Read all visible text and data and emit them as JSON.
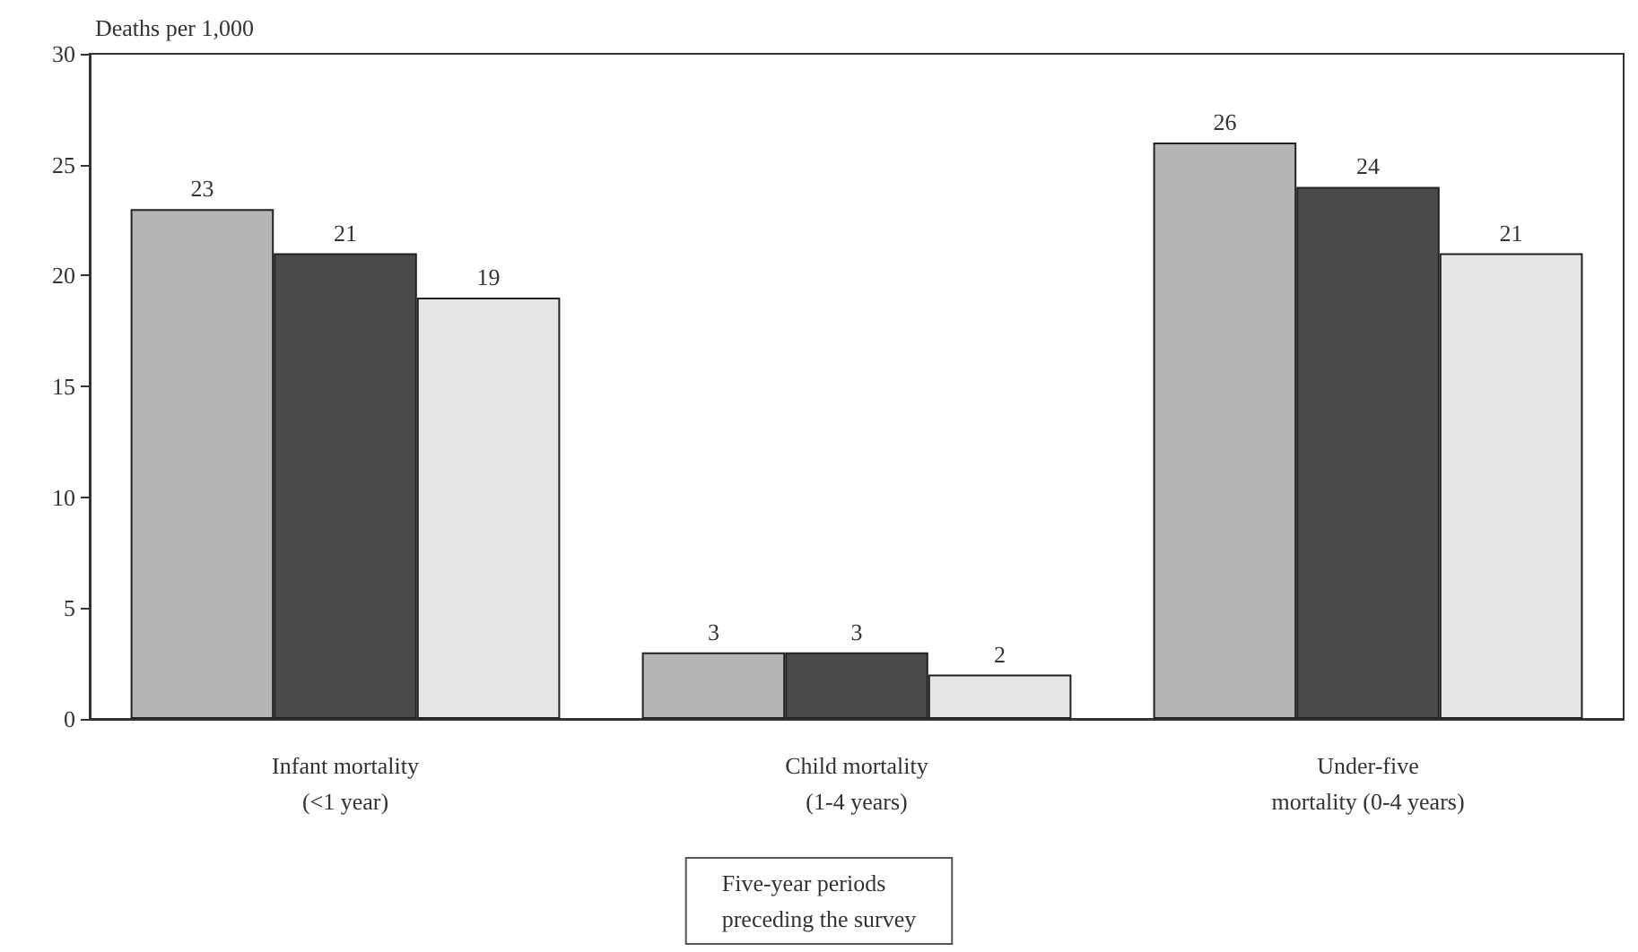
{
  "chart_data": {
    "type": "bar",
    "ylabel": "Deaths per 1,000",
    "legend_title": "Five-year periods\npreceding the survey",
    "categories": [
      "Infant mortality\n(<1 year)",
      "Child mortality\n(1-4 years)",
      "Under-five\nmortality (0-4 years)"
    ],
    "series": [
      {
        "color": "#b4b4b4",
        "values": [
          23,
          3,
          26
        ]
      },
      {
        "color": "#4a4a4a",
        "values": [
          21,
          3,
          24
        ]
      },
      {
        "color": "#e6e6e6",
        "values": [
          19,
          2,
          21
        ]
      }
    ],
    "ylim": [
      0,
      30
    ],
    "yticks": [
      0,
      5,
      10,
      15,
      20,
      25,
      30
    ],
    "data_labels": true,
    "grid": false
  }
}
